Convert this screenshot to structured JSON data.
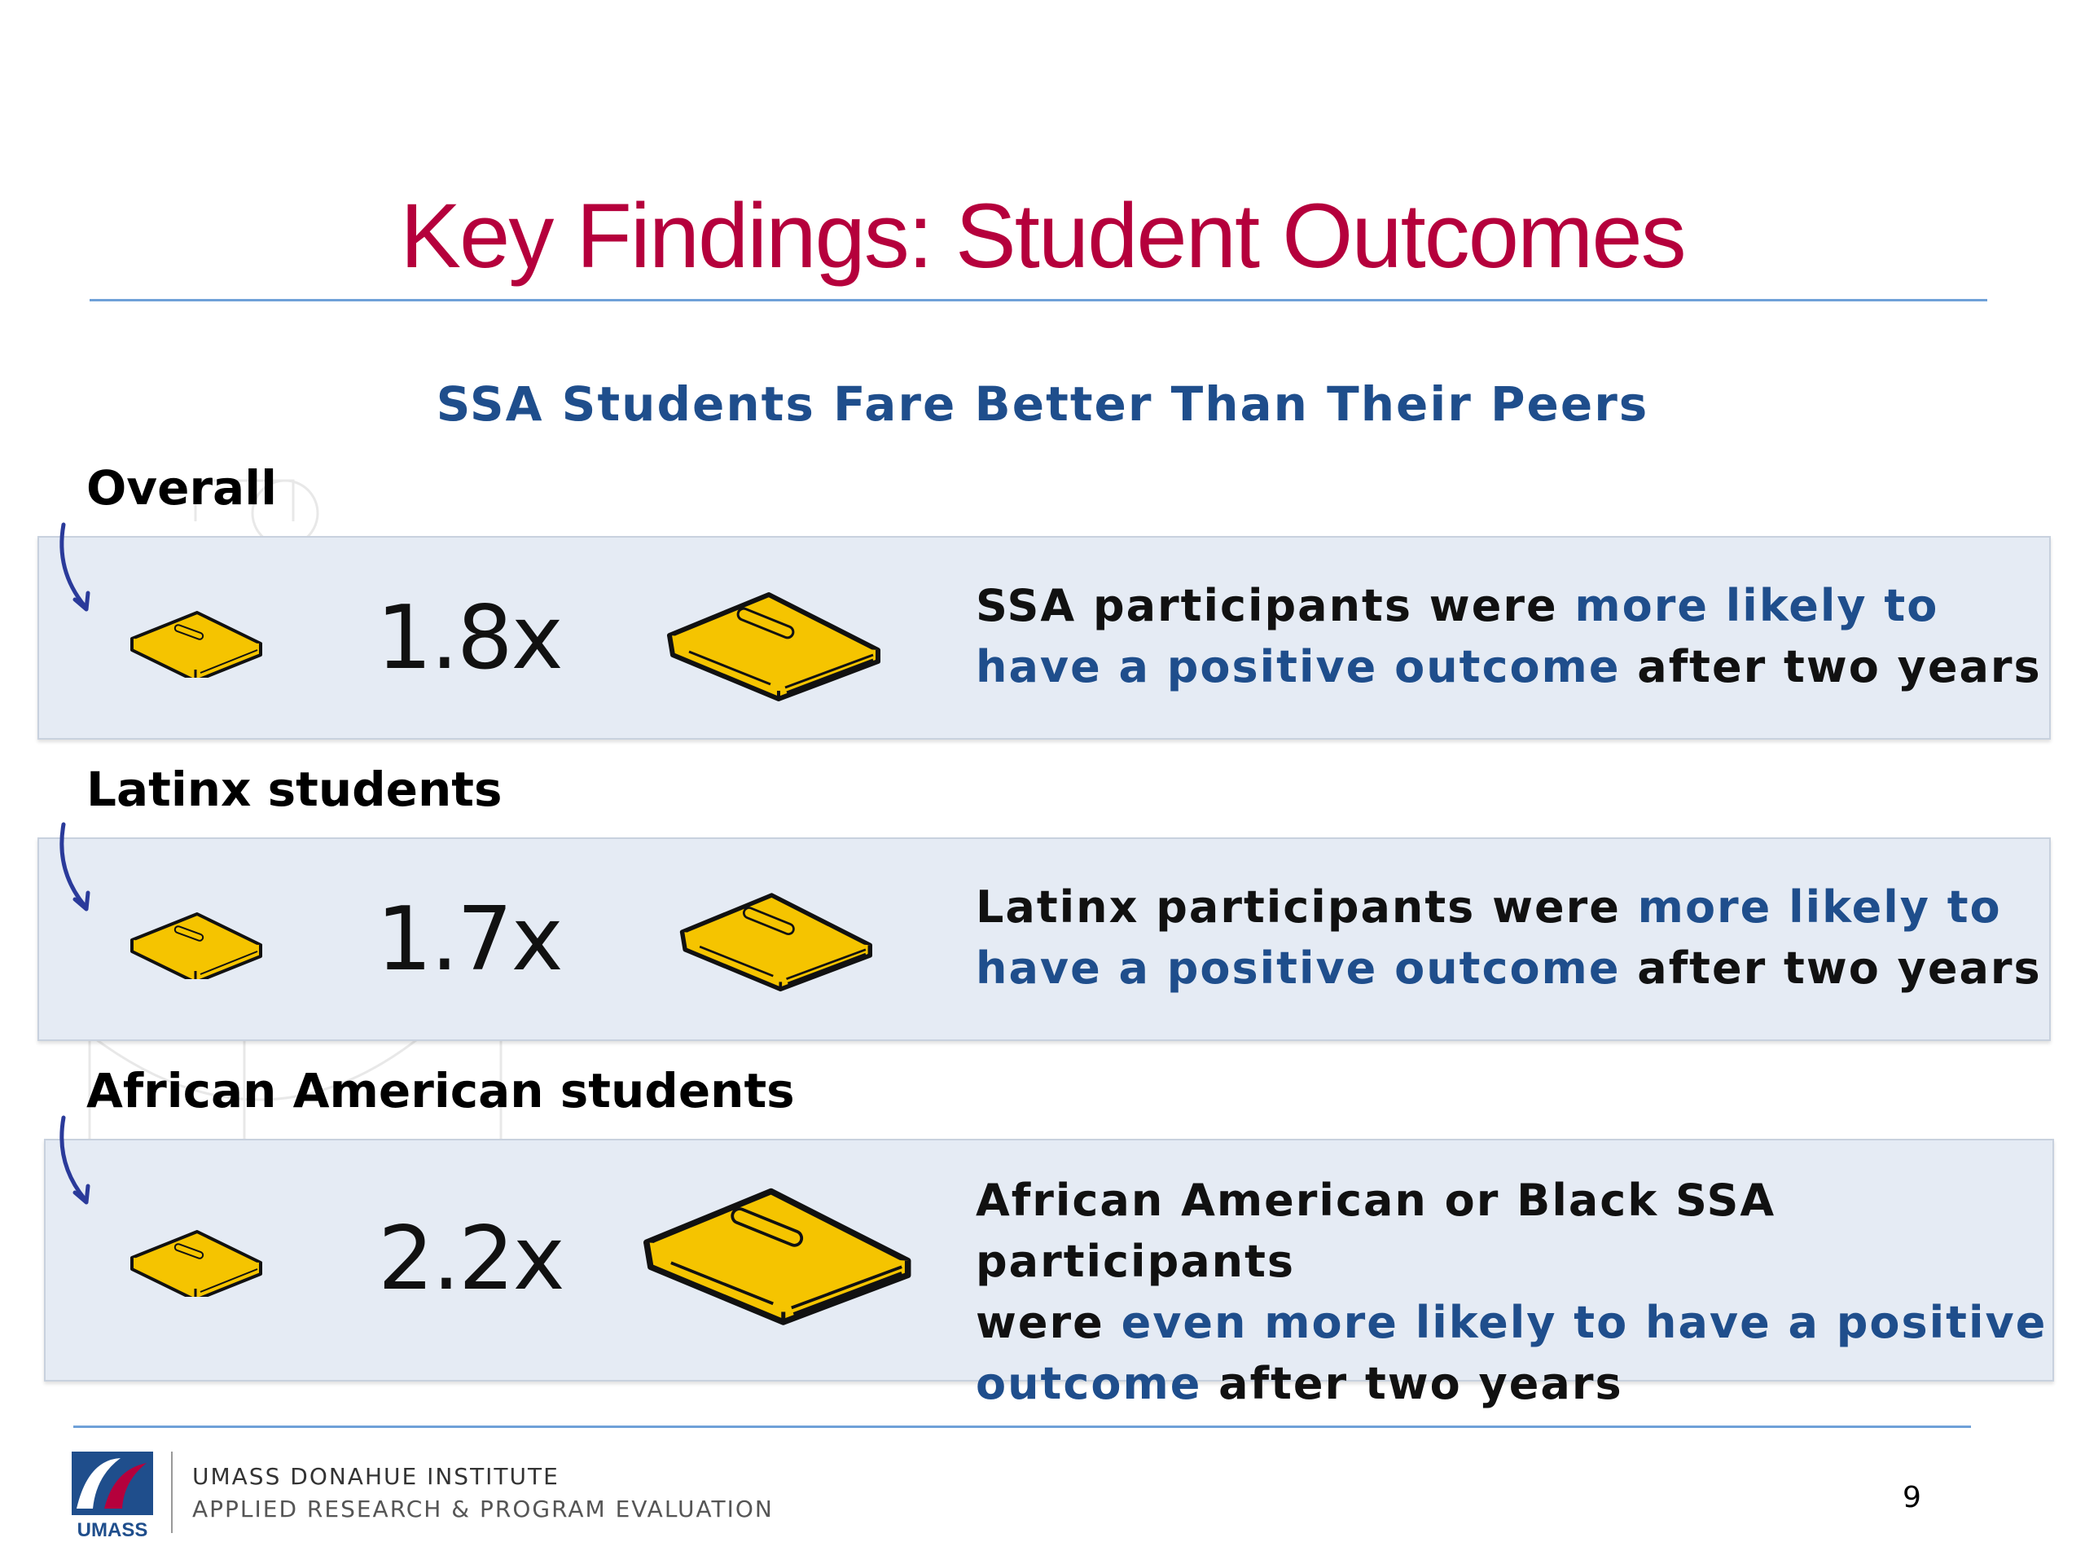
{
  "slide": {
    "title": "Key Findings: Student Outcomes",
    "subtitle": "SSA Students Fare Better Than Their Peers"
  },
  "rows": [
    {
      "label": "Overall",
      "ratio": "1.8x",
      "desc_parts": [
        "SSA participants were ",
        "more likely to",
        "have a positive outcome",
        " after two years"
      ]
    },
    {
      "label": "Latinx students",
      "ratio": "1.7x",
      "desc_parts": [
        "Latinx participants were ",
        "more likely to",
        "have a positive outcome",
        " after two years"
      ]
    },
    {
      "label": "African American students",
      "ratio": "2.2x",
      "desc_parts": [
        "African American or Black SSA participants",
        "were ",
        "even more likely to have a positive",
        "outcome",
        " after two years"
      ]
    }
  ],
  "footer": {
    "logo_text": "UMASS",
    "org_line1": "UMASS DONAHUE INSTITUTE",
    "org_line2": "APPLIED RESEARCH & PROGRAM EVALUATION",
    "page_number": "9"
  },
  "colors": {
    "title": "#b5003c",
    "accent_blue": "#1f4e8c",
    "band_bg": "#e5ebf4",
    "rule": "#6fa1d8",
    "book": "#f5c400"
  },
  "icons": [
    "curved-arrow-icon",
    "book-icon",
    "book-icon-large",
    "umass-logo"
  ]
}
